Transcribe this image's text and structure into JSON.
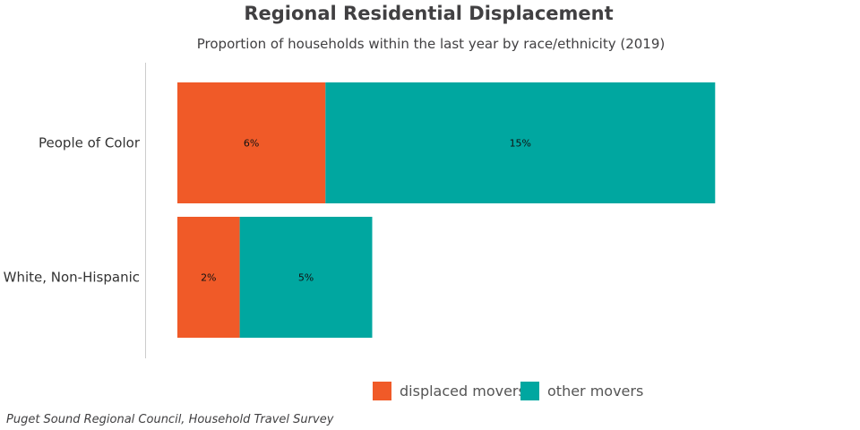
{
  "chart_data": {
    "type": "bar",
    "orientation": "horizontal",
    "stacked": true,
    "title": "Regional Residential Displacement",
    "subtitle": "Proportion of households within the last year by race/ethnicity (2019)",
    "categories": [
      "People of Color",
      "White, Non-Hispanic"
    ],
    "series": [
      {
        "name": "displaced movers",
        "color": "#F05A28",
        "values": [
          5.7,
          2.4
        ],
        "labels": [
          "6%",
          "2%"
        ]
      },
      {
        "name": "other movers",
        "color": "#00A7A0",
        "values": [
          15.0,
          5.1
        ],
        "labels": [
          "15%",
          "5%"
        ]
      }
    ],
    "xlim": [
      0,
      26
    ],
    "grid": false,
    "legend_position": "bottom",
    "source": "Puget Sound Regional Council, Household Travel Survey"
  }
}
